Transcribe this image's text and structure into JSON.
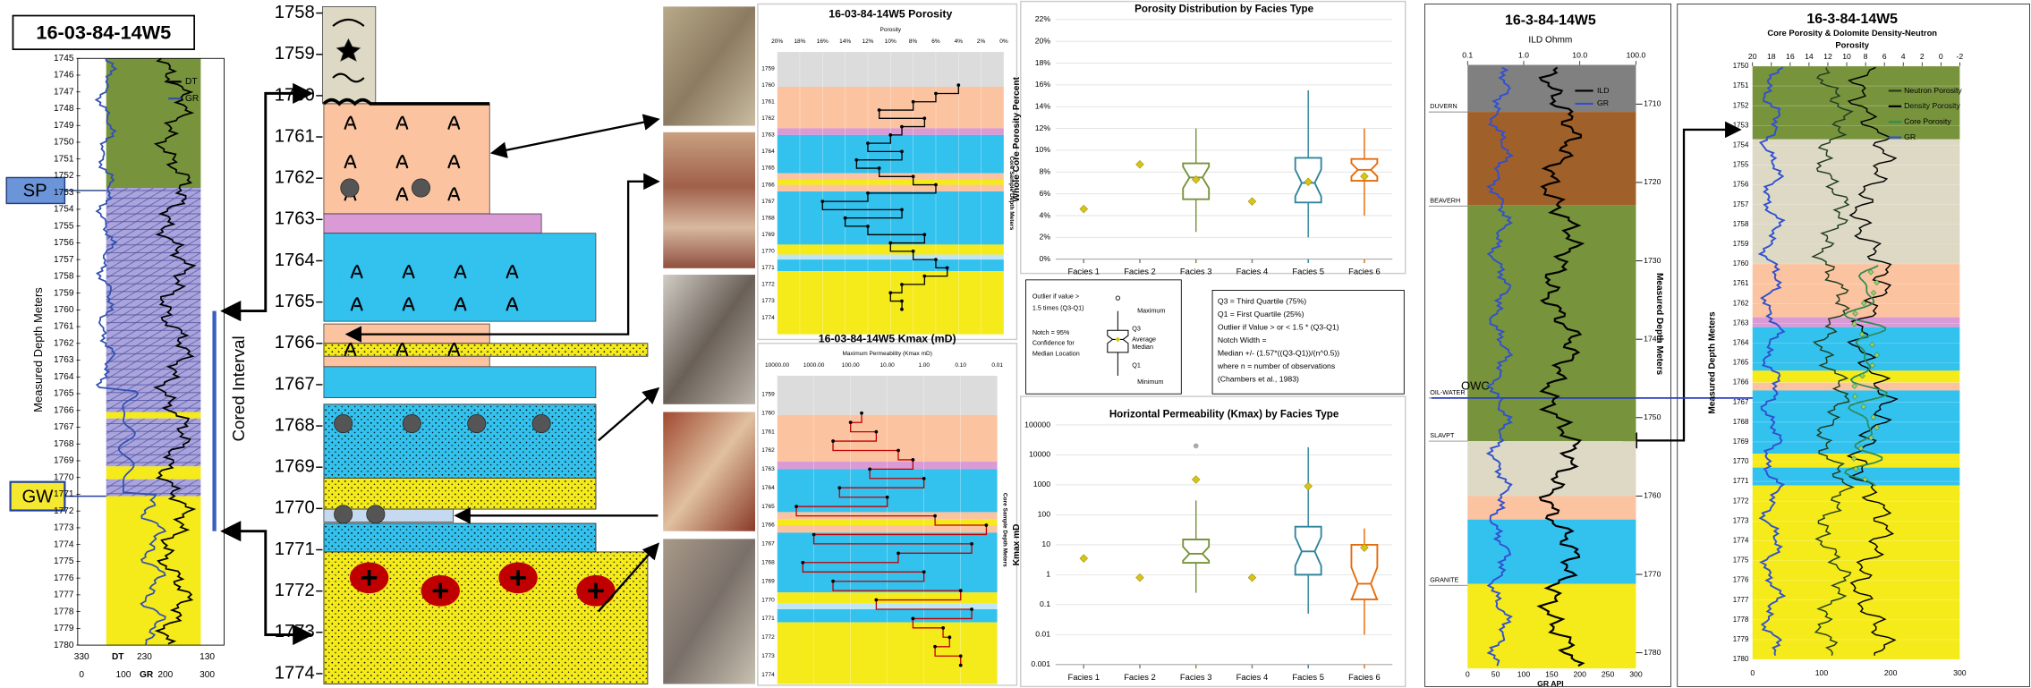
{
  "left_log": {
    "title": "16-03-84-14W5",
    "ylim": [
      1745,
      1780
    ],
    "depth_ticks": [
      1745,
      1746,
      1747,
      1748,
      1749,
      1750,
      1751,
      1752,
      1753,
      1754,
      1755,
      1756,
      1757,
      1758,
      1759,
      1760,
      1761,
      1762,
      1763,
      1764,
      1765,
      1766,
      1767,
      1768,
      1769,
      1770,
      1771,
      1772,
      1773,
      1774,
      1775,
      1776,
      1777,
      1778,
      1779,
      1780
    ],
    "depth_label": "Measured Depth Meters",
    "legend": [
      {
        "name": "DT",
        "color": "#000000"
      },
      {
        "name": "GR",
        "color": "#3050b0"
      }
    ],
    "sp": "SP",
    "gw": "GW",
    "cored": "Cored Interval",
    "dt_lim": [
      330,
      130
    ],
    "dt_ticks": [
      330,
      230,
      130
    ],
    "dt_label": "DT",
    "gr_lim": [
      0,
      300
    ],
    "gr_ticks": [
      0,
      100,
      200,
      300
    ],
    "gr_label": "GR"
  },
  "facies_column": {
    "ylim": [
      1758,
      1774
    ],
    "depth_ticks": [
      1758,
      1759,
      1760,
      1761,
      1762,
      1763,
      1764,
      1765,
      1766,
      1767,
      1768,
      1769,
      1770,
      1771,
      1772,
      1773,
      1774
    ]
  },
  "core_bands": [
    {
      "top": 1758,
      "base": 1760.1,
      "color": "#dcdcdc"
    },
    {
      "top": 1760.1,
      "base": 1762.6,
      "color": "#fbc3a0"
    },
    {
      "top": 1762.6,
      "base": 1763,
      "color": "#d99ad6"
    },
    {
      "top": 1763,
      "base": 1765.3,
      "color": "#33c1ee"
    },
    {
      "top": 1765.3,
      "base": 1765.7,
      "color": "#fbc3a0"
    },
    {
      "top": 1765.7,
      "base": 1766,
      "color": "#f5ea1a"
    },
    {
      "top": 1766,
      "base": 1766.4,
      "color": "#fbc3a0"
    },
    {
      "top": 1766.4,
      "base": 1769.6,
      "color": "#33c1ee"
    },
    {
      "top": 1769.6,
      "base": 1770.2,
      "color": "#f5ea1a"
    },
    {
      "top": 1770.2,
      "base": 1770.5,
      "color": "#bfe6f5"
    },
    {
      "top": 1770.5,
      "base": 1771.2,
      "color": "#33c1ee"
    },
    {
      "top": 1771.2,
      "base": 1775,
      "color": "#f5ea1a"
    }
  ],
  "porosity_profile": {
    "title": "16-03-84-14W5 Porosity",
    "axis_label": "Porosity",
    "depth_label": "Core Sample Depth Meters",
    "xlim": [
      20,
      0
    ],
    "xticks": [
      {
        "value": 20,
        "label": "20%"
      },
      {
        "value": 18,
        "label": "18%"
      },
      {
        "value": 16,
        "label": "16%"
      },
      {
        "value": 14,
        "label": "14%"
      },
      {
        "value": 12,
        "label": "12%"
      },
      {
        "value": 10,
        "label": "10%"
      },
      {
        "value": 8,
        "label": "8%"
      },
      {
        "value": 6,
        "label": "6%"
      },
      {
        "value": 4,
        "label": "4%"
      },
      {
        "value": 2,
        "label": "2%"
      },
      {
        "value": 0,
        "label": "0%"
      }
    ],
    "ylim": [
      1758,
      1775
    ],
    "depth_ticks": [
      1759,
      1760,
      1761,
      1762,
      1763,
      1764,
      1765,
      1766,
      1767,
      1768,
      1769,
      1770,
      1771,
      1772,
      1773,
      1774
    ],
    "depth": [
      1760,
      1760.5,
      1761,
      1761.5,
      1762,
      1762.5,
      1763,
      1763.5,
      1764,
      1764.5,
      1765,
      1765.5,
      1766,
      1766.5,
      1767,
      1767.5,
      1768,
      1768.5,
      1769,
      1769.5,
      1770,
      1770.5,
      1771,
      1771.5,
      1772,
      1772.5,
      1773,
      1773.5
    ],
    "values": [
      4,
      6,
      8,
      11,
      7,
      9,
      10,
      12,
      9,
      13,
      11,
      8,
      6,
      12,
      16,
      9,
      14,
      12,
      7,
      10,
      8,
      6,
      5,
      7,
      9,
      10,
      9,
      9
    ],
    "color": "#000000"
  },
  "kmax_profile": {
    "title": "16-03-84-14W5 Kmax (mD)",
    "axis_label": "Maximum Permeability (Kmax mD)",
    "depth_label": "Core Sample Depth Meters",
    "xlim": [
      10000,
      0.01
    ],
    "xticks": [
      {
        "value": 10000,
        "label": "10000.00"
      },
      {
        "value": 1000,
        "label": "1000.00"
      },
      {
        "value": 100,
        "label": "100.00"
      },
      {
        "value": 10,
        "label": "10.00"
      },
      {
        "value": 1,
        "label": "1.00"
      },
      {
        "value": 0.1,
        "label": "0.10"
      },
      0.01
    ],
    "ylim": [
      1758,
      1774.5
    ],
    "depth_ticks": [
      1759,
      1760,
      1761,
      1762,
      1763,
      1764,
      1765,
      1766,
      1767,
      1768,
      1769,
      1770,
      1771,
      1772,
      1773,
      1774
    ],
    "depth": [
      1760,
      1760.5,
      1761,
      1761.5,
      1762,
      1762.5,
      1763,
      1763.5,
      1764,
      1764.5,
      1765,
      1765.5,
      1766,
      1766.5,
      1767,
      1767.5,
      1768,
      1768.5,
      1769,
      1769.5,
      1770,
      1770.5,
      1771,
      1771.5,
      1772,
      1772.5,
      1773,
      1773.5
    ],
    "values": [
      50,
      100,
      20,
      300,
      5,
      2,
      30,
      1,
      200,
      10,
      3000,
      0.5,
      0.02,
      1000,
      0.05,
      5,
      2000,
      1,
      300,
      0.1,
      20,
      0.05,
      2,
      0.3,
      0.2,
      0.5,
      0.1,
      0.1
    ],
    "color": "#c00000"
  },
  "chart_data": [
    {
      "type": "box",
      "title": "Porosity Distribution by Facies Type",
      "y_label": "Whole Core Porosity Percent",
      "categories": [
        "Facies 1",
        "Facies 2",
        "Facies 3",
        "Facies 4",
        "Facies 5",
        "Facies 6"
      ],
      "colors": [
        "#7f7f7f",
        "#7f7f7f",
        "#77933c",
        "#7f7f7f",
        "#31859c",
        "#e46c0a"
      ],
      "mean_color": "#d6c41a",
      "min": [
        null,
        null,
        2.5,
        null,
        2,
        4
      ],
      "q1": [
        null,
        null,
        5.5,
        null,
        5.2,
        7.2
      ],
      "median": [
        null,
        null,
        7.5,
        null,
        7,
        8.2
      ],
      "q3": [
        null,
        null,
        8.8,
        null,
        9.3,
        9.2
      ],
      "max": [
        null,
        null,
        12,
        null,
        15.5,
        12
      ],
      "mean": [
        4.6,
        8.7,
        7.3,
        5.3,
        7.1,
        7.6
      ],
      "ylim": [
        0,
        22
      ],
      "yticks": [
        {
          "value": 0,
          "label": "0%"
        },
        {
          "value": 2,
          "label": "2%"
        },
        {
          "value": 4,
          "label": "4%"
        },
        {
          "value": 6,
          "label": "6%"
        },
        {
          "value": 8,
          "label": "8%"
        },
        {
          "value": 10,
          "label": "10%"
        },
        {
          "value": 12,
          "label": "12%"
        },
        {
          "value": 14,
          "label": "14%"
        },
        {
          "value": 16,
          "label": "16%"
        },
        {
          "value": 18,
          "label": "18%"
        },
        {
          "value": 20,
          "label": "20%"
        },
        {
          "value": 22,
          "label": "22%"
        }
      ],
      "grid": true,
      "log": false
    },
    {
      "type": "box",
      "title": "Horizontal Permeability (Kmax) by Facies Type",
      "y_label": "Kmax mD",
      "categories": [
        "Facies 1",
        "Facies 2",
        "Facies 3",
        "Facies 4",
        "Facies 5",
        "Facies 6"
      ],
      "colors": [
        "#7f7f7f",
        "#7f7f7f",
        "#77933c",
        "#7f7f7f",
        "#31859c",
        "#e46c0a"
      ],
      "mean_color": "#d6c41a",
      "min": [
        null,
        null,
        0.25,
        null,
        0.05,
        0.01
      ],
      "q1": [
        null,
        null,
        2.5,
        null,
        1,
        0.15
      ],
      "median": [
        null,
        null,
        5,
        null,
        6,
        0.5
      ],
      "q3": [
        null,
        null,
        15,
        null,
        40,
        10
      ],
      "max": [
        null,
        null,
        300,
        null,
        18000,
        35
      ],
      "mean": [
        3.5,
        0.8,
        1500,
        0.8,
        900,
        8
      ],
      "outliers": [
        null,
        null,
        20000,
        null,
        null,
        null
      ],
      "ylim": [
        0.001,
        100000
      ],
      "yticks": [
        0.001,
        0.01,
        0.1,
        1,
        10,
        100,
        1000,
        10000,
        100000
      ],
      "grid": true,
      "log": true
    }
  ],
  "box_legend": {
    "left": [
      "Outlier if value >",
      "1.5 times (Q3-Q1)",
      "Maximum",
      "Q3",
      "Average",
      "Median",
      "Q1",
      "Minimum",
      "Notch = 95%",
      "Confidence for",
      "Median Location"
    ],
    "notes": [
      "Q3 = Third Quartile (75%)",
      "Q1 = First Quartile (25%)",
      "Outlier if Value > or < 1.5 * (Q3-Q1)",
      "Notch Width =",
      "Median +/- (1.57*((Q3-Q1))/(n^0.5))",
      "where n = number of observations",
      "(Chambers et al., 1983)"
    ]
  },
  "right_log": {
    "title": "16-3-84-14W5",
    "axis_label": "ILD Ohmm",
    "xlim": [
      0.1,
      100
    ],
    "xticks": [
      0.1,
      {
        "value": 1,
        "label": "1.0"
      },
      {
        "value": 10,
        "label": "10.0"
      },
      {
        "value": 100,
        "label": "100.0"
      }
    ],
    "ylim": [
      1705,
      1782
    ],
    "depth_ticks": [
      1710,
      1720,
      1730,
      1740,
      1750,
      1760,
      1770,
      1780
    ],
    "depth_label": "Measured Depth Meters",
    "legend": [
      {
        "name": "ILD",
        "color": "#000000"
      },
      {
        "name": "GR",
        "color": "#3050d0"
      }
    ],
    "tops": [
      {
        "name": "DUVERN",
        "depth": 1711
      },
      {
        "name": "BEAVERH",
        "depth": 1723
      },
      {
        "name": "OIL-WATER",
        "depth": 1747.5
      },
      {
        "name": "SLAVPT",
        "depth": 1753
      },
      {
        "name": "GRANITE",
        "depth": 1771.4
      }
    ],
    "owc": "OWC",
    "owc_depth": 1747.5,
    "bands": [
      {
        "top": 1705,
        "base": 1711,
        "color": "#808080"
      },
      {
        "top": 1711,
        "base": 1722.9,
        "color": "#a0602a"
      },
      {
        "top": 1722.9,
        "base": 1753,
        "color": "#77933c"
      },
      {
        "top": 1753,
        "base": 1760,
        "color": "#ddd9c4"
      },
      {
        "top": 1760,
        "base": 1763,
        "color": "#fbc3a0"
      },
      {
        "top": 1763,
        "base": 1771.2,
        "color": "#33c1ee"
      },
      {
        "top": 1771.2,
        "base": 1782,
        "color": "#f5ea1a"
      }
    ],
    "gr_lim": [
      0,
      300
    ],
    "gr_ticks": [
      0,
      50,
      100,
      150,
      200,
      250,
      300
    ],
    "gr_label": "GR API"
  },
  "porosity_log": {
    "title": "16-3-84-14W5",
    "subtitle": "Core Porosity & Dolomite Density-Neutron",
    "subtitle2": "Porosity",
    "xlim": [
      20,
      -2
    ],
    "xticks": [
      20,
      18,
      16,
      14,
      12,
      10,
      8,
      6,
      4,
      2,
      0,
      -2
    ],
    "ylim": [
      1750,
      1780
    ],
    "depth_ticks": [
      1750,
      1751,
      1752,
      1753,
      1754,
      1755,
      1756,
      1757,
      1758,
      1759,
      1760,
      1761,
      1762,
      1763,
      1764,
      1765,
      1766,
      1767,
      1768,
      1769,
      1770,
      1771,
      1772,
      1773,
      1774,
      1775,
      1776,
      1777,
      1778,
      1779,
      1780
    ],
    "depth_label": "Measured Depth Meters",
    "legend": [
      {
        "name": "Neutron Porosity",
        "color": "#1f3d1f"
      },
      {
        "name": "Density Porosity",
        "color": "#000000"
      },
      {
        "name": "Core Porosity",
        "color": "#2e8b57"
      },
      {
        "name": "GR",
        "color": "#3050d0"
      }
    ],
    "bands": [
      {
        "top": 1750,
        "base": 1753.7,
        "color": "#77933c"
      },
      {
        "top": 1753.7,
        "base": 1760,
        "color": "#ddd9c4"
      },
      {
        "top": 1760,
        "base": 1762.7,
        "color": "#fbc3a0"
      },
      {
        "top": 1762.7,
        "base": 1763.2,
        "color": "#d99ad6"
      },
      {
        "top": 1763.2,
        "base": 1765.4,
        "color": "#33c1ee"
      },
      {
        "top": 1765.4,
        "base": 1766,
        "color": "#f5ea1a"
      },
      {
        "top": 1766,
        "base": 1766.4,
        "color": "#fbc3a0"
      },
      {
        "top": 1766.4,
        "base": 1769.6,
        "color": "#33c1ee"
      },
      {
        "top": 1769.6,
        "base": 1770.3,
        "color": "#f5ea1a"
      },
      {
        "top": 1770.3,
        "base": 1771.2,
        "color": "#33c1ee"
      },
      {
        "top": 1771.2,
        "base": 1780,
        "color": "#f5ea1a"
      }
    ],
    "gr_lim": [
      0,
      300
    ],
    "gr_ticks": [
      0,
      100,
      200,
      300
    ]
  }
}
